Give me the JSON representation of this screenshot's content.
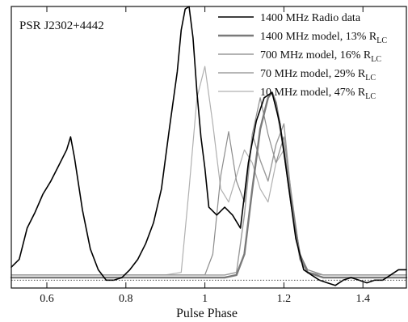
{
  "chart_data": {
    "type": "line",
    "annotation": "PSR J2302+4442",
    "xlabel": "Pulse Phase",
    "ylabel": "",
    "xlim": [
      0.51,
      1.51
    ],
    "ylim": [
      -0.03,
      1.05
    ],
    "x_ticks": [
      0.6,
      0.8,
      1,
      1.2,
      1.4
    ],
    "x_tick_labels": [
      "0.6",
      "0.8",
      "1",
      "1.2",
      "1.4"
    ],
    "y_ticks_shown": false,
    "baseline_y": 0.0,
    "legend_position": "top-right",
    "legend_entries": [
      {
        "label": "1400 MHz Radio data",
        "suffix": ""
      },
      {
        "label": "1400 MHz model, 13% R",
        "suffix": "LC"
      },
      {
        "label": "700 MHz model, 16% R",
        "suffix": "LC"
      },
      {
        "label": "70 MHz model, 29% R",
        "suffix": "LC"
      },
      {
        "label": "10 MHz model, 47% R",
        "suffix": "LC"
      }
    ],
    "series": [
      {
        "color": "#000000",
        "width": 1.6,
        "x": [
          0.51,
          0.53,
          0.55,
          0.57,
          0.59,
          0.61,
          0.63,
          0.65,
          0.66,
          0.67,
          0.69,
          0.71,
          0.73,
          0.75,
          0.77,
          0.79,
          0.81,
          0.83,
          0.85,
          0.87,
          0.89,
          0.91,
          0.93,
          0.94,
          0.95,
          0.96,
          0.97,
          0.98,
          0.99,
          1.0,
          1.01,
          1.03,
          1.05,
          1.07,
          1.09,
          1.11,
          1.13,
          1.15,
          1.17,
          1.19,
          1.21,
          1.23,
          1.25,
          1.27,
          1.29,
          1.31,
          1.33,
          1.35,
          1.37,
          1.39,
          1.41,
          1.43,
          1.45,
          1.47,
          1.49,
          1.51
        ],
        "y": [
          0.05,
          0.08,
          0.2,
          0.26,
          0.33,
          0.38,
          0.44,
          0.5,
          0.55,
          0.47,
          0.27,
          0.12,
          0.04,
          0.0,
          0.0,
          0.01,
          0.04,
          0.08,
          0.14,
          0.22,
          0.35,
          0.58,
          0.8,
          0.96,
          1.04,
          1.05,
          0.93,
          0.72,
          0.55,
          0.43,
          0.28,
          0.25,
          0.28,
          0.25,
          0.2,
          0.45,
          0.61,
          0.7,
          0.72,
          0.6,
          0.38,
          0.16,
          0.04,
          0.02,
          0.0,
          -0.01,
          -0.02,
          0.0,
          0.01,
          0.0,
          -0.01,
          0.0,
          0.0,
          0.02,
          0.04,
          0.04
        ]
      },
      {
        "color": "#7a7a7a",
        "width": 2.4,
        "x": [
          0.51,
          0.6,
          0.7,
          0.8,
          0.9,
          1.0,
          1.05,
          1.08,
          1.1,
          1.12,
          1.14,
          1.16,
          1.17,
          1.18,
          1.2,
          1.22,
          1.24,
          1.26,
          1.3,
          1.4,
          1.51
        ],
        "y": [
          0.01,
          0.01,
          0.01,
          0.01,
          0.01,
          0.01,
          0.01,
          0.02,
          0.1,
          0.35,
          0.58,
          0.7,
          0.72,
          0.68,
          0.5,
          0.28,
          0.1,
          0.03,
          0.01,
          0.01,
          0.01
        ]
      },
      {
        "color": "#9a9a9a",
        "width": 1.4,
        "x": [
          0.51,
          0.6,
          0.7,
          0.8,
          0.9,
          1.0,
          1.05,
          1.08,
          1.1,
          1.12,
          1.14,
          1.16,
          1.18,
          1.2,
          1.22,
          1.24,
          1.26,
          1.3,
          1.4,
          1.51
        ],
        "y": [
          0.02,
          0.02,
          0.02,
          0.02,
          0.02,
          0.02,
          0.02,
          0.03,
          0.25,
          0.56,
          0.46,
          0.38,
          0.52,
          0.6,
          0.3,
          0.08,
          0.03,
          0.02,
          0.02,
          0.02
        ]
      },
      {
        "color": "#8c8c8c",
        "width": 1.2,
        "x": [
          0.51,
          0.6,
          0.7,
          0.8,
          0.9,
          0.95,
          1.0,
          1.02,
          1.04,
          1.06,
          1.08,
          1.1,
          1.12,
          1.14,
          1.16,
          1.18,
          1.2,
          1.22,
          1.24,
          1.26,
          1.3,
          1.4,
          1.51
        ],
        "y": [
          0.02,
          0.02,
          0.02,
          0.02,
          0.02,
          0.02,
          0.02,
          0.1,
          0.4,
          0.57,
          0.38,
          0.3,
          0.56,
          0.7,
          0.56,
          0.45,
          0.55,
          0.32,
          0.1,
          0.04,
          0.02,
          0.02,
          0.02
        ]
      },
      {
        "color": "#b0b0b0",
        "width": 1.2,
        "x": [
          0.51,
          0.6,
          0.7,
          0.8,
          0.9,
          0.94,
          0.96,
          0.98,
          1.0,
          1.02,
          1.04,
          1.06,
          1.08,
          1.1,
          1.12,
          1.14,
          1.16,
          1.18,
          1.2,
          1.22,
          1.24,
          1.26,
          1.3,
          1.4,
          1.51
        ],
        "y": [
          0.02,
          0.02,
          0.02,
          0.02,
          0.02,
          0.03,
          0.35,
          0.7,
          0.82,
          0.6,
          0.35,
          0.3,
          0.4,
          0.5,
          0.45,
          0.35,
          0.3,
          0.45,
          0.5,
          0.3,
          0.1,
          0.04,
          0.02,
          0.02,
          0.02
        ]
      }
    ]
  }
}
